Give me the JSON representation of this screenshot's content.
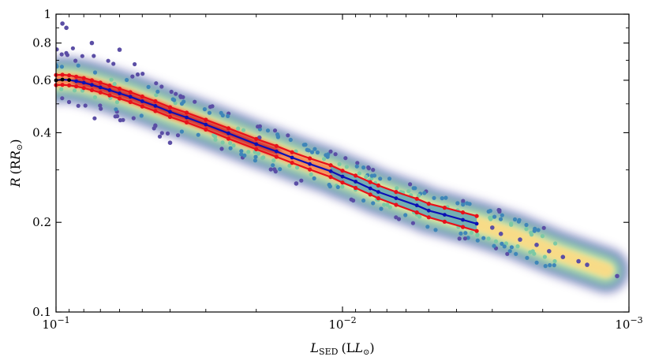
{
  "chart_data": {
    "type": "scatter",
    "title": "",
    "xlabel_main": "L",
    "xlabel_sub": "SED",
    "xlabel_unit": "(L",
    "xlabel_close": ")",
    "ylabel_main": "R",
    "ylabel_unit": "(R",
    "ylabel_close": ")",
    "xscale": "log",
    "yscale": "log",
    "xlim": [
      0.1,
      0.001
    ],
    "ylim": [
      0.1,
      1.0
    ],
    "x_ticks": [
      {
        "value": 0.1,
        "base": "10",
        "exp": "−1"
      },
      {
        "value": 0.01,
        "base": "10",
        "exp": "−2"
      },
      {
        "value": 0.001,
        "base": "10",
        "exp": "−3"
      }
    ],
    "y_ticks": [
      {
        "value": 0.1,
        "label": "0.1"
      },
      {
        "value": 0.2,
        "label": "0.2"
      },
      {
        "value": 0.4,
        "label": "0.4"
      },
      {
        "value": 0.6,
        "label": "0.6"
      },
      {
        "value": 0.8,
        "label": "0.8"
      },
      {
        "value": 1.0,
        "label": "1"
      }
    ],
    "grid": false,
    "colormap": "density (Spectral_r)",
    "colors": {
      "blue_line": "#0b10b5",
      "red_band": "#e8101a",
      "band_fill": "#48a0c0",
      "outlier": "#5b4ea5"
    },
    "series": [
      {
        "kind": "binned_median",
        "color": "#0b10b5",
        "x": [
          0.1,
          0.095,
          0.09,
          0.085,
          0.08,
          0.075,
          0.07,
          0.065,
          0.06,
          0.055,
          0.05,
          0.045,
          0.04,
          0.035,
          0.03,
          0.025,
          0.02,
          0.017,
          0.015,
          0.013,
          0.011,
          0.01,
          0.009,
          0.008,
          0.0075,
          0.0065,
          0.0055,
          0.005,
          0.0044,
          0.0038,
          0.0034
        ],
        "y": [
          0.6,
          0.603,
          0.601,
          0.596,
          0.589,
          0.579,
          0.568,
          0.556,
          0.542,
          0.528,
          0.51,
          0.492,
          0.47,
          0.45,
          0.426,
          0.398,
          0.366,
          0.346,
          0.33,
          0.314,
          0.297,
          0.285,
          0.274,
          0.26,
          0.253,
          0.241,
          0.228,
          0.219,
          0.212,
          0.204,
          0.198
        ]
      },
      {
        "kind": "upper_envelope",
        "color": "#e8101a",
        "x": [
          0.1,
          0.095,
          0.09,
          0.085,
          0.08,
          0.075,
          0.07,
          0.065,
          0.06,
          0.055,
          0.05,
          0.045,
          0.04,
          0.035,
          0.03,
          0.025,
          0.02,
          0.017,
          0.015,
          0.013,
          0.011,
          0.01,
          0.009,
          0.008,
          0.0075,
          0.0065,
          0.0055,
          0.005,
          0.0044,
          0.0038,
          0.0034
        ],
        "y": [
          0.625,
          0.626,
          0.623,
          0.617,
          0.61,
          0.6,
          0.589,
          0.576,
          0.562,
          0.547,
          0.529,
          0.51,
          0.487,
          0.467,
          0.442,
          0.414,
          0.381,
          0.361,
          0.344,
          0.328,
          0.311,
          0.298,
          0.287,
          0.273,
          0.266,
          0.253,
          0.24,
          0.231,
          0.224,
          0.216,
          0.21
        ]
      },
      {
        "kind": "lower_envelope",
        "color": "#e8101a",
        "x": [
          0.1,
          0.095,
          0.09,
          0.085,
          0.08,
          0.075,
          0.07,
          0.065,
          0.06,
          0.055,
          0.05,
          0.045,
          0.04,
          0.035,
          0.03,
          0.025,
          0.02,
          0.017,
          0.015,
          0.013,
          0.011,
          0.01,
          0.009,
          0.008,
          0.0075,
          0.0065,
          0.0055,
          0.005,
          0.0044,
          0.0038,
          0.0034
        ],
        "y": [
          0.578,
          0.579,
          0.577,
          0.572,
          0.565,
          0.556,
          0.546,
          0.534,
          0.521,
          0.507,
          0.49,
          0.473,
          0.452,
          0.433,
          0.41,
          0.382,
          0.352,
          0.332,
          0.317,
          0.301,
          0.284,
          0.272,
          0.261,
          0.248,
          0.241,
          0.229,
          0.216,
          0.208,
          0.201,
          0.193,
          0.187
        ]
      }
    ],
    "outliers": [
      {
        "x": 0.0011,
        "y": 0.132
      },
      {
        "x": 0.0014,
        "y": 0.144
      },
      {
        "x": 0.0015,
        "y": 0.148
      },
      {
        "x": 0.0017,
        "y": 0.153
      },
      {
        "x": 0.0019,
        "y": 0.16
      },
      {
        "x": 0.0021,
        "y": 0.168
      },
      {
        "x": 0.0024,
        "y": 0.175
      },
      {
        "x": 0.0028,
        "y": 0.183
      },
      {
        "x": 0.003,
        "y": 0.192
      },
      {
        "x": 0.095,
        "y": 0.93
      },
      {
        "x": 0.092,
        "y": 0.9
      },
      {
        "x": 0.075,
        "y": 0.8
      },
      {
        "x": 0.06,
        "y": 0.76
      },
      {
        "x": 0.0195,
        "y": 0.385
      },
      {
        "x": 0.0145,
        "y": 0.27
      },
      {
        "x": 0.04,
        "y": 0.37
      }
    ]
  }
}
